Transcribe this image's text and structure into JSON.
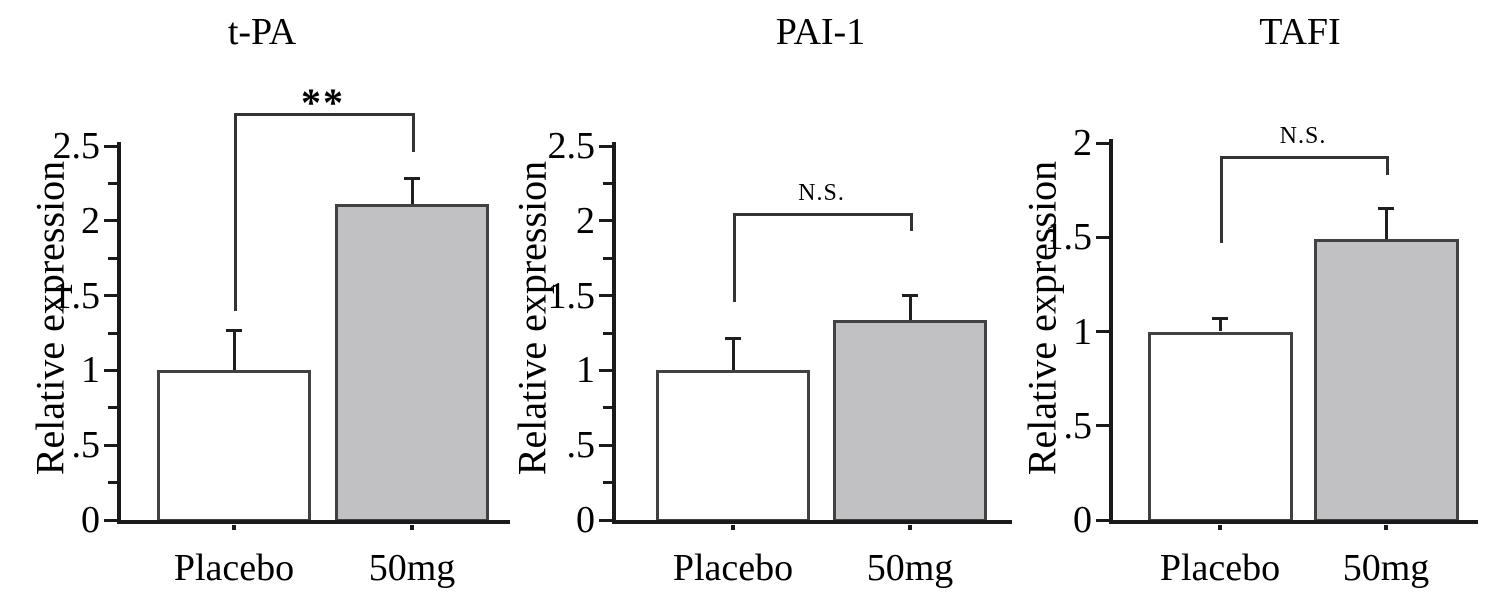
{
  "chart_data": [
    {
      "type": "bar",
      "title": "t-PA",
      "ylabel": "Relative expression",
      "categories": [
        "Placebo",
        "50mg"
      ],
      "values": [
        1.0,
        2.11
      ],
      "errors_plus": [
        0.27,
        0.17
      ],
      "bar_fill_colors": [
        "#ffffff",
        "#c1c1c3"
      ],
      "bar_border_color": "#414141",
      "ylim": [
        0,
        2.5
      ],
      "ytick_labels": [
        "0",
        ".5",
        "1",
        "1.5",
        "2",
        "2.5"
      ],
      "minor_tick_step": 0.25,
      "grid": false,
      "legend": "none",
      "significance": {
        "label": "**",
        "bracket_y": 2.72,
        "left_leg_bottom": 1.4,
        "right_leg_bottom": 2.46
      }
    },
    {
      "type": "bar",
      "title": "PAI-1",
      "ylabel": "Relative expression",
      "categories": [
        "Placebo",
        "50mg"
      ],
      "values": [
        1.0,
        1.34
      ],
      "errors_plus": [
        0.21,
        0.16
      ],
      "bar_fill_colors": [
        "#ffffff",
        "#c1c1c3"
      ],
      "bar_border_color": "#414141",
      "ylim": [
        0,
        2.5
      ],
      "ytick_labels": [
        "0",
        ".5",
        "1",
        "1.5",
        "2",
        "2.5"
      ],
      "minor_tick_step": 0.25,
      "grid": false,
      "legend": "none",
      "significance": {
        "label": "N.S.",
        "bracket_y": 2.05,
        "left_leg_bottom": 1.46,
        "right_leg_bottom": 1.93
      }
    },
    {
      "type": "bar",
      "title": "TAFI",
      "ylabel": "Relative expression",
      "categories": [
        "Placebo",
        "50mg"
      ],
      "values": [
        1.0,
        1.49
      ],
      "errors_plus": [
        0.07,
        0.16
      ],
      "bar_fill_colors": [
        "#ffffff",
        "#c1c1c3"
      ],
      "bar_border_color": "#414141",
      "ylim": [
        0,
        2
      ],
      "ytick_labels": [
        "0",
        ".5",
        "1",
        "1.5",
        "2"
      ],
      "minor_tick_step": null,
      "grid": false,
      "legend": "none",
      "significance": {
        "label": "N.S.",
        "bracket_y": 1.93,
        "left_leg_bottom": 1.47,
        "right_leg_bottom": 1.83
      }
    }
  ]
}
